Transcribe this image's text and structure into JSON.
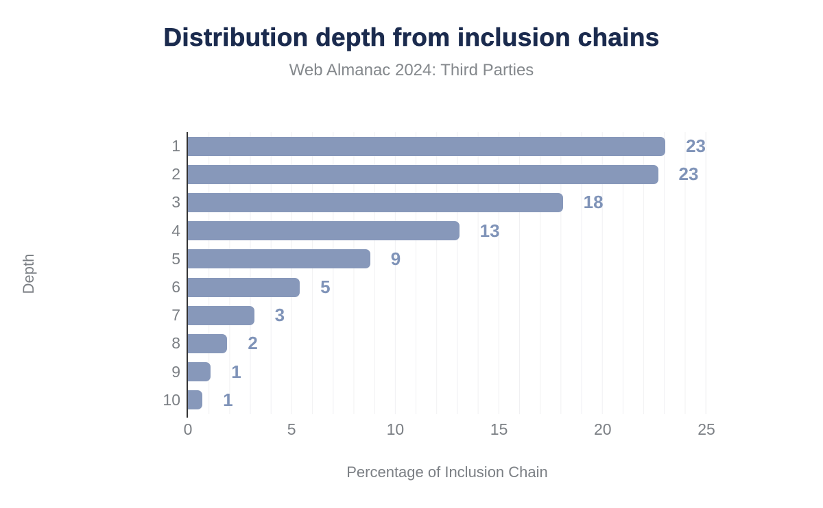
{
  "title": "Distribution depth from inclusion chains",
  "subtitle": "Web Almanac 2024: Third Parties",
  "colors": {
    "title": "#1b2b4e",
    "subtitle": "#84888c",
    "axis_text": "#7b7f84",
    "bar": "#8798ba",
    "data_label": "#7f93b8",
    "gridline": "#f0f0f2",
    "axis_line": "#333333",
    "background": "#ffffff"
  },
  "chart_data": {
    "type": "bar",
    "orientation": "horizontal",
    "title": "Distribution depth from inclusion chains",
    "subtitle": "Web Almanac 2024: Third Parties",
    "xlabel": "Percentage of Inclusion Chain",
    "ylabel": "Depth",
    "categories": [
      "1",
      "2",
      "3",
      "4",
      "5",
      "6",
      "7",
      "8",
      "9",
      "10"
    ],
    "values": [
      23.3,
      22.7,
      18.1,
      13.1,
      8.8,
      5.4,
      3.2,
      1.9,
      1.1,
      0.7
    ],
    "data_labels": [
      "23",
      "23",
      "18",
      "13",
      "9",
      "5",
      "3",
      "2",
      "1",
      "1"
    ],
    "xlim": [
      0,
      25
    ],
    "x_ticks": [
      0,
      5,
      10,
      15,
      20,
      25
    ],
    "gridlines": {
      "vertical_every": 1,
      "visible": true
    },
    "legend": "none"
  }
}
